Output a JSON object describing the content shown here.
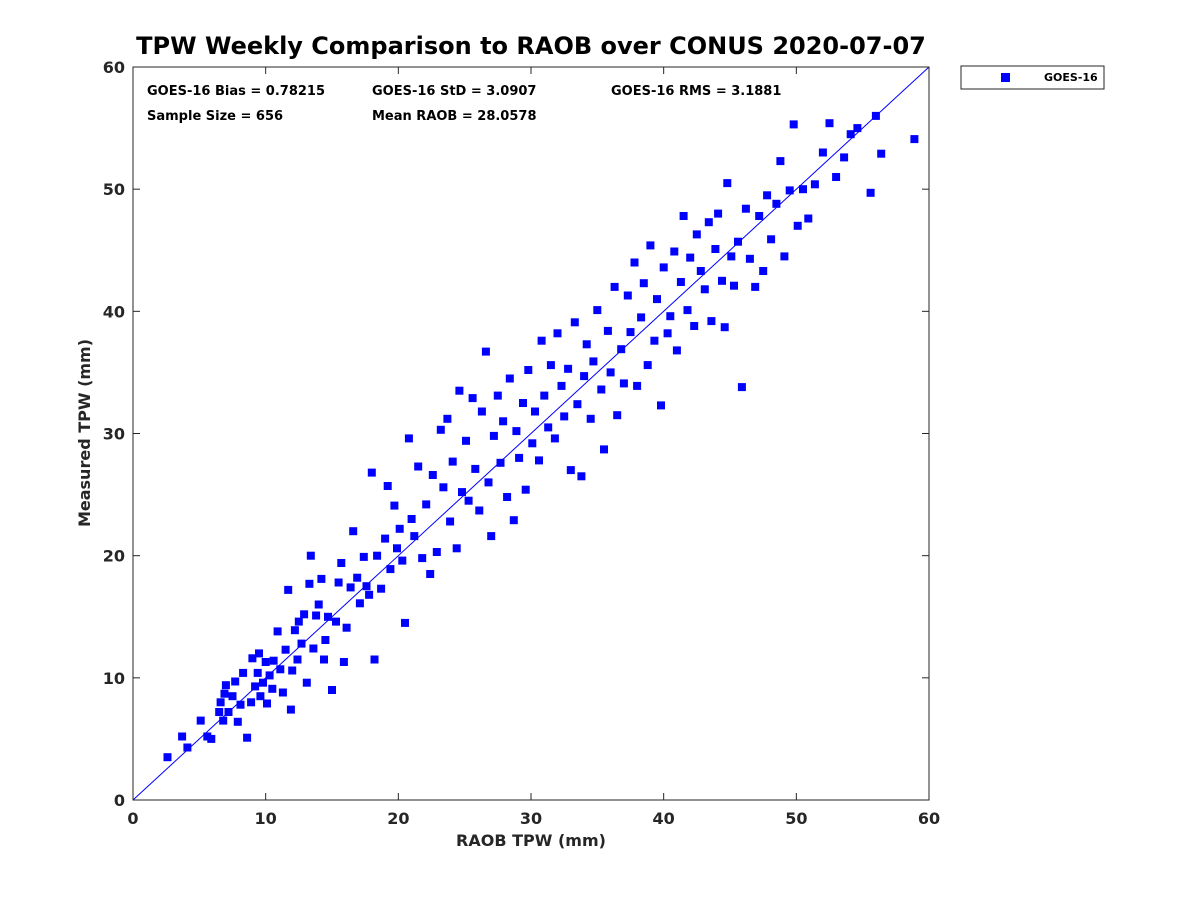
{
  "chart_data": {
    "type": "scatter",
    "title": "TPW Weekly Comparison to RAOB over CONUS 2020-07-07",
    "xlabel": "RAOB TPW (mm)",
    "ylabel": "Measured TPW (mm)",
    "xlim": [
      0,
      60
    ],
    "ylim": [
      0,
      60
    ],
    "xticks": [
      "0",
      "10",
      "20",
      "30",
      "40",
      "50",
      "60"
    ],
    "yticks": [
      "0",
      "10",
      "20",
      "30",
      "40",
      "50",
      "60"
    ],
    "grid": false,
    "legend_position": "outside-top-right",
    "stats": {
      "bias": "GOES-16 Bias = 0.78215",
      "std": "GOES-16 StD = 3.0907",
      "rms": "GOES-16 RMS = 3.1881",
      "sample_size": "Sample Size = 656",
      "mean_raob": "Mean RAOB = 28.0578"
    },
    "reference_line": {
      "name": "1:1 line",
      "x": [
        0,
        60
      ],
      "y": [
        0,
        60
      ],
      "color": "#0000ff"
    },
    "series": [
      {
        "name": "GOES-16",
        "marker": "square",
        "color": "#0000ff",
        "points": [
          [
            2.6,
            3.5
          ],
          [
            3.7,
            5.2
          ],
          [
            4.1,
            4.3
          ],
          [
            5.1,
            6.5
          ],
          [
            5.6,
            5.2
          ],
          [
            5.9,
            5.0
          ],
          [
            6.5,
            7.2
          ],
          [
            6.6,
            8.0
          ],
          [
            6.8,
            6.5
          ],
          [
            6.9,
            8.7
          ],
          [
            7.0,
            9.4
          ],
          [
            7.2,
            7.2
          ],
          [
            7.5,
            8.5
          ],
          [
            7.7,
            9.7
          ],
          [
            7.9,
            6.4
          ],
          [
            8.1,
            7.8
          ],
          [
            8.3,
            10.4
          ],
          [
            8.6,
            5.1
          ],
          [
            8.9,
            8.0
          ],
          [
            9.0,
            11.6
          ],
          [
            9.2,
            9.3
          ],
          [
            9.4,
            10.4
          ],
          [
            9.5,
            12.0
          ],
          [
            9.6,
            8.5
          ],
          [
            9.8,
            9.6
          ],
          [
            10.0,
            11.3
          ],
          [
            10.1,
            7.9
          ],
          [
            10.3,
            10.2
          ],
          [
            10.5,
            9.1
          ],
          [
            10.6,
            11.4
          ],
          [
            10.9,
            13.8
          ],
          [
            11.1,
            10.7
          ],
          [
            11.3,
            8.8
          ],
          [
            11.5,
            12.3
          ],
          [
            11.7,
            17.2
          ],
          [
            11.9,
            7.4
          ],
          [
            12.0,
            10.6
          ],
          [
            12.2,
            13.9
          ],
          [
            12.4,
            11.5
          ],
          [
            12.5,
            14.6
          ],
          [
            12.7,
            12.8
          ],
          [
            12.9,
            15.2
          ],
          [
            13.1,
            9.6
          ],
          [
            13.3,
            17.7
          ],
          [
            13.4,
            20.0
          ],
          [
            13.6,
            12.4
          ],
          [
            13.8,
            15.1
          ],
          [
            14.0,
            16.0
          ],
          [
            14.2,
            18.1
          ],
          [
            14.4,
            11.5
          ],
          [
            14.5,
            13.1
          ],
          [
            14.7,
            15.0
          ],
          [
            15.0,
            9.0
          ],
          [
            15.3,
            14.6
          ],
          [
            15.5,
            17.8
          ],
          [
            15.7,
            19.4
          ],
          [
            15.9,
            11.3
          ],
          [
            16.1,
            14.1
          ],
          [
            16.4,
            17.4
          ],
          [
            16.6,
            22.0
          ],
          [
            16.9,
            18.2
          ],
          [
            17.1,
            16.1
          ],
          [
            17.4,
            19.9
          ],
          [
            17.6,
            17.5
          ],
          [
            17.8,
            16.8
          ],
          [
            18.0,
            26.8
          ],
          [
            18.2,
            11.5
          ],
          [
            18.4,
            20.0
          ],
          [
            18.7,
            17.3
          ],
          [
            19.0,
            21.4
          ],
          [
            19.2,
            25.7
          ],
          [
            19.4,
            18.9
          ],
          [
            19.7,
            24.1
          ],
          [
            19.9,
            20.6
          ],
          [
            20.1,
            22.2
          ],
          [
            20.3,
            19.6
          ],
          [
            20.5,
            14.5
          ],
          [
            20.8,
            29.6
          ],
          [
            21.0,
            23.0
          ],
          [
            21.2,
            21.6
          ],
          [
            21.5,
            27.3
          ],
          [
            21.8,
            19.8
          ],
          [
            22.1,
            24.2
          ],
          [
            22.4,
            18.5
          ],
          [
            22.6,
            26.6
          ],
          [
            22.9,
            20.3
          ],
          [
            23.2,
            30.3
          ],
          [
            23.4,
            25.6
          ],
          [
            23.7,
            31.2
          ],
          [
            23.9,
            22.8
          ],
          [
            24.1,
            27.7
          ],
          [
            24.4,
            20.6
          ],
          [
            24.6,
            33.5
          ],
          [
            24.8,
            25.2
          ],
          [
            25.1,
            29.4
          ],
          [
            25.3,
            24.5
          ],
          [
            25.6,
            32.9
          ],
          [
            25.8,
            27.1
          ],
          [
            26.1,
            23.7
          ],
          [
            26.3,
            31.8
          ],
          [
            26.6,
            36.7
          ],
          [
            26.8,
            26.0
          ],
          [
            27.0,
            21.6
          ],
          [
            27.2,
            29.8
          ],
          [
            27.5,
            33.1
          ],
          [
            27.7,
            27.6
          ],
          [
            27.9,
            31.0
          ],
          [
            28.2,
            24.8
          ],
          [
            28.4,
            34.5
          ],
          [
            28.7,
            22.9
          ],
          [
            28.9,
            30.2
          ],
          [
            29.1,
            28.0
          ],
          [
            29.4,
            32.5
          ],
          [
            29.6,
            25.4
          ],
          [
            29.8,
            35.2
          ],
          [
            30.1,
            29.2
          ],
          [
            30.3,
            31.8
          ],
          [
            30.6,
            27.8
          ],
          [
            30.8,
            37.6
          ],
          [
            31.0,
            33.1
          ],
          [
            31.3,
            30.5
          ],
          [
            31.5,
            35.6
          ],
          [
            31.8,
            29.6
          ],
          [
            32.0,
            38.2
          ],
          [
            32.3,
            33.9
          ],
          [
            32.5,
            31.4
          ],
          [
            32.8,
            35.3
          ],
          [
            33.0,
            27.0
          ],
          [
            33.3,
            39.1
          ],
          [
            33.5,
            32.4
          ],
          [
            33.8,
            26.5
          ],
          [
            34.0,
            34.7
          ],
          [
            34.2,
            37.3
          ],
          [
            34.5,
            31.2
          ],
          [
            34.7,
            35.9
          ],
          [
            35.0,
            40.1
          ],
          [
            35.3,
            33.6
          ],
          [
            35.5,
            28.7
          ],
          [
            35.8,
            38.4
          ],
          [
            36.0,
            35.0
          ],
          [
            36.3,
            42.0
          ],
          [
            36.5,
            31.5
          ],
          [
            36.8,
            36.9
          ],
          [
            37.0,
            34.1
          ],
          [
            37.3,
            41.3
          ],
          [
            37.5,
            38.3
          ],
          [
            37.8,
            44.0
          ],
          [
            38.0,
            33.9
          ],
          [
            38.3,
            39.5
          ],
          [
            38.5,
            42.3
          ],
          [
            38.8,
            35.6
          ],
          [
            39.0,
            45.4
          ],
          [
            39.3,
            37.6
          ],
          [
            39.5,
            41.0
          ],
          [
            39.8,
            32.3
          ],
          [
            40.0,
            43.6
          ],
          [
            40.3,
            38.2
          ],
          [
            40.5,
            39.6
          ],
          [
            40.8,
            44.9
          ],
          [
            41.0,
            36.8
          ],
          [
            41.3,
            42.4
          ],
          [
            41.5,
            47.8
          ],
          [
            41.8,
            40.1
          ],
          [
            42.0,
            44.4
          ],
          [
            42.3,
            38.8
          ],
          [
            42.5,
            46.3
          ],
          [
            42.8,
            43.3
          ],
          [
            43.1,
            41.8
          ],
          [
            43.4,
            47.3
          ],
          [
            43.6,
            39.2
          ],
          [
            43.9,
            45.1
          ],
          [
            44.1,
            48.0
          ],
          [
            44.4,
            42.5
          ],
          [
            44.6,
            38.7
          ],
          [
            44.8,
            50.5
          ],
          [
            45.1,
            44.5
          ],
          [
            45.3,
            42.1
          ],
          [
            45.6,
            45.7
          ],
          [
            45.9,
            33.8
          ],
          [
            46.2,
            48.4
          ],
          [
            46.5,
            44.3
          ],
          [
            46.9,
            42.0
          ],
          [
            47.2,
            47.8
          ],
          [
            47.5,
            43.3
          ],
          [
            47.8,
            49.5
          ],
          [
            48.1,
            45.9
          ],
          [
            48.5,
            48.8
          ],
          [
            48.8,
            52.3
          ],
          [
            49.1,
            44.5
          ],
          [
            49.5,
            49.9
          ],
          [
            49.8,
            55.3
          ],
          [
            50.1,
            47.0
          ],
          [
            50.5,
            50.0
          ],
          [
            50.9,
            47.6
          ],
          [
            51.4,
            50.4
          ],
          [
            52.0,
            53.0
          ],
          [
            52.5,
            55.4
          ],
          [
            53.0,
            51.0
          ],
          [
            53.6,
            52.6
          ],
          [
            54.1,
            54.5
          ],
          [
            54.6,
            55.0
          ],
          [
            55.6,
            49.7
          ],
          [
            56.0,
            56.0
          ],
          [
            56.4,
            52.9
          ],
          [
            58.9,
            54.1
          ]
        ]
      }
    ]
  }
}
